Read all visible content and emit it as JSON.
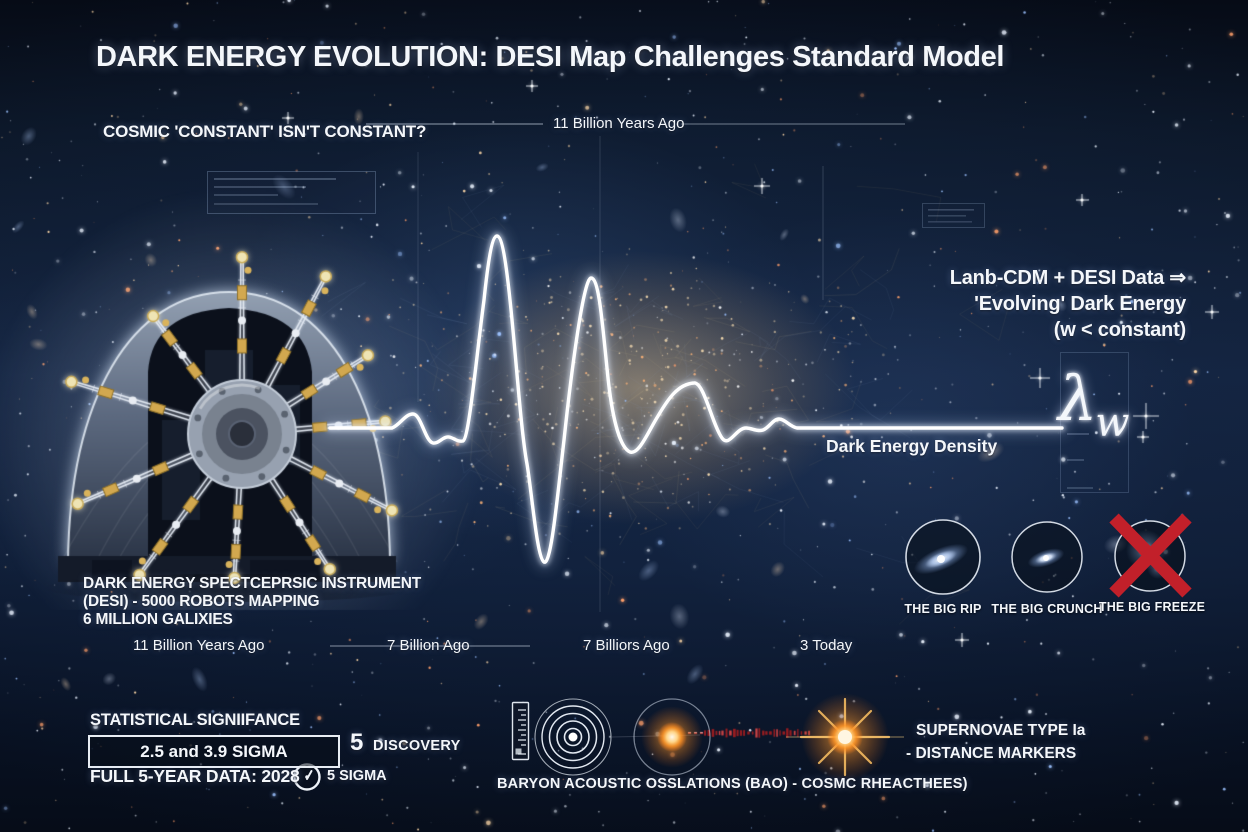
{
  "meta": {
    "accent_red": "#c2202a",
    "accent_orange": "#ff9a2e",
    "text_color": "#ffffff"
  },
  "header": {
    "title": "DARK ENERGY EVOLUTION: DESI Map Challenges Standard Model",
    "question": "COSMIC 'CONSTANT' ISN'T CONSTANT?"
  },
  "top_marker": {
    "label": "11 Billion Years Ago"
  },
  "model_annotation": {
    "line1": "Lanb-CDM + DESI Data ⇒",
    "line2": "'Evolving' Dark Energy",
    "line3": "(w < constant)"
  },
  "curve": {
    "label": "Dark Energy Density",
    "symbol": "λ",
    "symbol_sub": "w"
  },
  "desi": {
    "line1": "DARK ENERGY SPECTCEPRSIC INSTRUMENT",
    "line2": "(DESI) - 5000 ROBOTS MAPPING",
    "line3": "6 MILLION GALIXIES"
  },
  "timeline": {
    "labels": [
      "11 Billion Years Ago",
      "7 Billion Ago",
      "7 Billiors Ago",
      "3 Today"
    ]
  },
  "fates": [
    {
      "label": "THE BIG RIP",
      "crossed": false
    },
    {
      "label": "THE BIG CRUNCH",
      "crossed": false
    },
    {
      "label": "THE BIG FREEZE",
      "crossed": true
    }
  ],
  "stats": {
    "heading": "STATISTICAL SIGNIIFANCE",
    "range": "2.5 and 3.9 SIGMA",
    "discovery_value": "5",
    "discovery_label": "DISCOVERY",
    "full_data": "FULL 5-YEAR DATA: 2028",
    "target": "5 SIGMA"
  },
  "bao": {
    "caption": "BARYON ACOUSTIC OSSLATIONS (BAO) - COSMC RHEACTHEES)"
  },
  "supernovae": {
    "line1": "SUPERNOVAE TYPE Ia",
    "line2": "- DISTANCE MARKERS"
  },
  "icons": {
    "red_x_icon": "✕",
    "clock_icon": "gauge-dial",
    "ruler_icon": "measuring-ruler",
    "bao_rings_icon": "concentric-circles",
    "supernova_icon": "starburst",
    "galaxy_icon": "spiral-galaxy",
    "telescope_icon": "desi-dome-with-fiber-robots"
  }
}
